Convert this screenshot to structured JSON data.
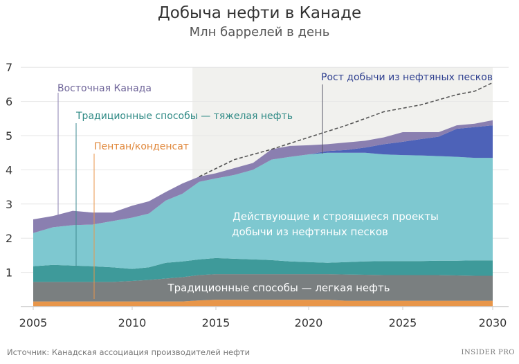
{
  "chart_data": {
    "type": "area",
    "stacked": true,
    "title": "Добыча нефти в Канаде",
    "subtitle": "Млн баррелей в день",
    "x": [
      2005,
      2006,
      2007,
      2008,
      2009,
      2010,
      2011,
      2012,
      2013,
      2014,
      2015,
      2016,
      2017,
      2018,
      2019,
      2020,
      2021,
      2022,
      2023,
      2024,
      2025,
      2026,
      2027,
      2028,
      2029,
      2030
    ],
    "xticks": [
      "2005",
      "2010",
      "2015",
      "2020",
      "2025",
      "2030"
    ],
    "yticks": [
      "1",
      "2",
      "3",
      "4",
      "5",
      "6",
      "7"
    ],
    "ylim": [
      0,
      7
    ],
    "xlim": [
      2005,
      2030
    ],
    "grid": true,
    "forecast_shading_start": 2013.6,
    "series": [
      {
        "name": "Пентан/конденсат",
        "color": "#e8964a",
        "values": [
          0.15,
          0.15,
          0.15,
          0.15,
          0.15,
          0.15,
          0.15,
          0.15,
          0.15,
          0.18,
          0.2,
          0.2,
          0.2,
          0.2,
          0.2,
          0.2,
          0.2,
          0.17,
          0.17,
          0.17,
          0.17,
          0.17,
          0.17,
          0.17,
          0.17,
          0.17
        ]
      },
      {
        "name": "Традиционные способы — легкая нефть",
        "color": "#7a7f80",
        "values": [
          0.57,
          0.57,
          0.57,
          0.57,
          0.57,
          0.6,
          0.63,
          0.67,
          0.71,
          0.74,
          0.75,
          0.75,
          0.75,
          0.75,
          0.75,
          0.75,
          0.75,
          0.77,
          0.76,
          0.75,
          0.75,
          0.75,
          0.75,
          0.74,
          0.73,
          0.73
        ]
      },
      {
        "name": "Традиционные способы — тяжелая нефть",
        "color": "#3e9a9a",
        "values": [
          0.46,
          0.5,
          0.48,
          0.46,
          0.43,
          0.35,
          0.37,
          0.46,
          0.46,
          0.46,
          0.47,
          0.45,
          0.43,
          0.41,
          0.37,
          0.35,
          0.33,
          0.36,
          0.39,
          0.41,
          0.41,
          0.41,
          0.42,
          0.43,
          0.45,
          0.45
        ]
      },
      {
        "name": "Действующие и строящиеся проекты добычи из нефтяных песков",
        "color": "#7ec8d0",
        "values": [
          0.97,
          1.1,
          1.18,
          1.22,
          1.35,
          1.5,
          1.57,
          1.82,
          1.98,
          2.27,
          2.33,
          2.45,
          2.62,
          2.94,
          3.06,
          3.15,
          3.22,
          3.2,
          3.18,
          3.12,
          3.1,
          3.09,
          3.06,
          3.04,
          3.0,
          3.0
        ]
      },
      {
        "name": "Рост добычи из нефтяных песков",
        "color": "#4d62b8",
        "values": [
          0,
          0,
          0,
          0,
          0,
          0,
          0,
          0,
          0,
          0,
          0,
          0,
          0,
          0,
          0,
          0,
          0.05,
          0.08,
          0.15,
          0.3,
          0.39,
          0.48,
          0.57,
          0.82,
          0.9,
          0.95
        ]
      },
      {
        "name": "Восточная Канада",
        "color": "#8a7fb0",
        "values": [
          0.4,
          0.33,
          0.42,
          0.35,
          0.25,
          0.35,
          0.36,
          0.25,
          0.3,
          0.15,
          0.15,
          0.2,
          0.2,
          0.3,
          0.32,
          0.27,
          0.2,
          0.22,
          0.2,
          0.2,
          0.28,
          0.2,
          0.13,
          0.1,
          0.1,
          0.15
        ]
      }
    ],
    "dashed_line": {
      "x": [
        2014,
        2016,
        2018,
        2020,
        2022,
        2024,
        2026,
        2028,
        2029,
        2030
      ],
      "y": [
        3.8,
        4.3,
        4.6,
        4.95,
        5.3,
        5.7,
        5.9,
        6.2,
        6.3,
        6.55
      ]
    },
    "annotations": {
      "eastern": "Восточная Канада",
      "heavy": "Традиционные способы — тяжелая нефть",
      "pentane": "Пентан/конденсат",
      "growth": "Рост добычи из нефтяных песков",
      "oilsands_line1": "Действующие и строящиеся проекты",
      "oilsands_line2": "добычи из нефтяных песков",
      "light": "Традиционные способы — легкая нефть"
    }
  },
  "source": "Источник: Канадская ассоциация производителей нефти",
  "logo": "INSIDER PRO"
}
